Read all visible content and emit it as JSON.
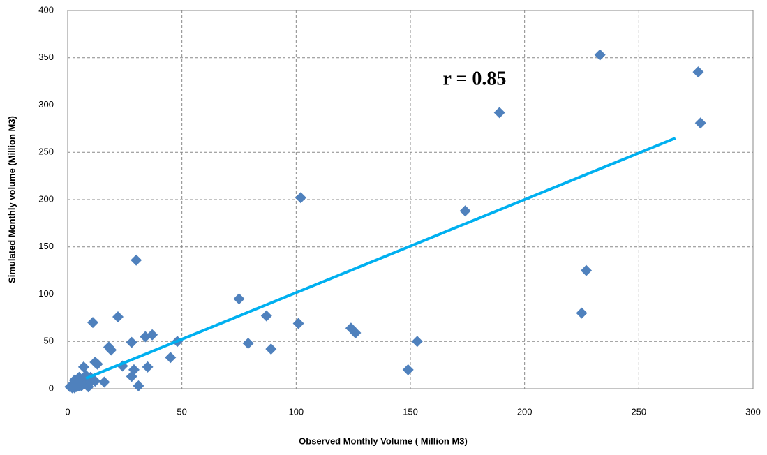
{
  "chart_data": {
    "type": "scatter",
    "xlabel": "Observed Monthly Volume ( Million M3)",
    "ylabel": "Simulated Monthly volume (Million M3)",
    "annotation": "r = 0.85",
    "xlim": [
      0,
      300
    ],
    "xticks": [
      0,
      50,
      100,
      150,
      200,
      250,
      300
    ],
    "ylim": [
      0,
      400
    ],
    "yticks": [
      0,
      50,
      100,
      150,
      200,
      250,
      300,
      350,
      400
    ],
    "grid": true,
    "series": [
      {
        "color": "#4f81bd",
        "x": [
          233,
          276,
          189,
          277,
          102,
          174,
          30,
          227,
          75,
          225,
          87,
          22,
          11,
          101,
          124,
          126,
          37,
          34,
          48,
          153,
          28,
          79,
          18,
          19,
          89,
          45,
          12,
          13,
          7,
          24,
          35,
          149,
          29,
          28,
          16,
          31,
          1,
          2,
          3,
          4,
          5,
          6,
          7,
          8,
          9,
          10,
          3,
          5,
          8,
          2,
          6,
          10,
          4,
          12
        ],
        "values": [
          353,
          335,
          292,
          281,
          202,
          188,
          136,
          125,
          95,
          80,
          77,
          76,
          70,
          69,
          64,
          59,
          57,
          55,
          50,
          50,
          49,
          48,
          44,
          41,
          42,
          33,
          28,
          26,
          23,
          24,
          23,
          20,
          20,
          13,
          7,
          3,
          2,
          4,
          1,
          6,
          3,
          8,
          10,
          5,
          2,
          7,
          9,
          12,
          14,
          1,
          3,
          12,
          2,
          8
        ]
      }
    ],
    "trendline": {
      "color": "#00b0f0",
      "x": [
        8,
        266
      ],
      "values": [
        11,
        265
      ]
    }
  }
}
